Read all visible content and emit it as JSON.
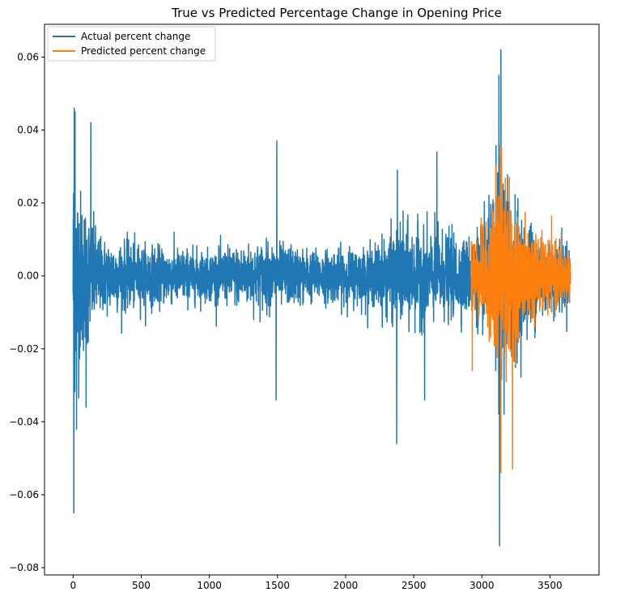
{
  "chart_data": {
    "type": "line",
    "title": "True vs Predicted Percentage Change in Opening Price",
    "xlabel": "",
    "ylabel": "",
    "xlim": [
      -210,
      3860
    ],
    "ylim": [
      -0.082,
      0.069
    ],
    "xticks": [
      0,
      500,
      1000,
      1500,
      2000,
      2500,
      3000,
      3500
    ],
    "xtick_labels": [
      "0",
      "500",
      "1000",
      "1500",
      "2000",
      "2500",
      "3000",
      "3500"
    ],
    "yticks": [
      -0.08,
      -0.06,
      -0.04,
      -0.02,
      0.0,
      0.02,
      0.04,
      0.06
    ],
    "ytick_labels": [
      "−0.08",
      "−0.06",
      "−0.04",
      "−0.02",
      "0.00",
      "0.02",
      "0.04",
      "0.06"
    ],
    "grid": false,
    "legend_position": "top-left",
    "series": [
      {
        "name": "Actual percent change",
        "color": "#1f77b4",
        "x_range": [
          0,
          3650
        ],
        "noise_envelope": {
          "x": [
            0,
            60,
            200,
            600,
            1000,
            1400,
            1800,
            2200,
            2400,
            2600,
            2900,
            3050,
            3130,
            3180,
            3300,
            3500,
            3650
          ],
          "amplitude": [
            0.03,
            0.02,
            0.009,
            0.007,
            0.006,
            0.008,
            0.006,
            0.007,
            0.012,
            0.011,
            0.009,
            0.014,
            0.03,
            0.025,
            0.014,
            0.009,
            0.008
          ]
        },
        "spikes": [
          {
            "x": 5,
            "y": -0.065
          },
          {
            "x": 8,
            "y": 0.046
          },
          {
            "x": 14,
            "y": 0.045
          },
          {
            "x": 25,
            "y": -0.042
          },
          {
            "x": 95,
            "y": -0.036
          },
          {
            "x": 130,
            "y": 0.042
          },
          {
            "x": 1495,
            "y": 0.037
          },
          {
            "x": 1490,
            "y": -0.034
          },
          {
            "x": 2375,
            "y": -0.046
          },
          {
            "x": 2380,
            "y": 0.029
          },
          {
            "x": 2670,
            "y": 0.034
          },
          {
            "x": 2580,
            "y": -0.034
          },
          {
            "x": 3130,
            "y": -0.074
          },
          {
            "x": 3140,
            "y": 0.062
          },
          {
            "x": 3125,
            "y": 0.055
          }
        ]
      },
      {
        "name": "Predicted percent change",
        "color": "#ff7f0e",
        "x_range": [
          2920,
          3650
        ],
        "noise_envelope": {
          "x": [
            2920,
            3050,
            3120,
            3160,
            3220,
            3300,
            3450,
            3650
          ],
          "amplitude": [
            0.01,
            0.011,
            0.03,
            0.025,
            0.016,
            0.012,
            0.009,
            0.007
          ]
        },
        "spikes": [
          {
            "x": 2930,
            "y": -0.026
          },
          {
            "x": 3135,
            "y": 0.036
          },
          {
            "x": 3140,
            "y": -0.054
          },
          {
            "x": 3225,
            "y": -0.053
          },
          {
            "x": 3145,
            "y": 0.035
          }
        ]
      }
    ]
  }
}
